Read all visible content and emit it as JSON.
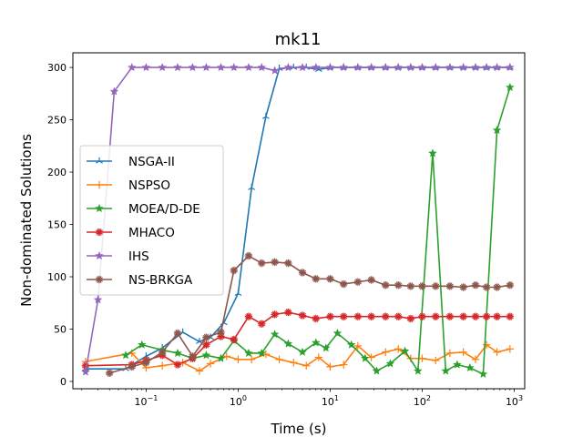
{
  "chart_data": {
    "type": "line",
    "title": "mk11",
    "xlabel": "Time (s)",
    "ylabel": "Non-dominated Solutions",
    "xscale": "log",
    "xlim": [
      0.016,
      1300
    ],
    "ylim": [
      -7,
      314
    ],
    "x_ticks": [
      0.1,
      1,
      10,
      100,
      1000
    ],
    "x_tick_labels": [
      [
        "10",
        "−1"
      ],
      [
        "10",
        "0"
      ],
      [
        "10",
        "1"
      ],
      [
        "10",
        "2"
      ],
      [
        "10",
        "3"
      ]
    ],
    "y_ticks": [
      0,
      50,
      100,
      150,
      200,
      250,
      300
    ],
    "y_tick_labels": [
      "0",
      "50",
      "100",
      "150",
      "200",
      "250",
      "300"
    ],
    "grid": false,
    "legend_position": "center-left",
    "series": [
      {
        "name": "NSGA-II",
        "color": "#1f77b4",
        "marker": "tri",
        "x": [
          0.022,
          0.06,
          0.1,
          0.15,
          0.25,
          0.38,
          0.5,
          0.7,
          1.0,
          1.4,
          2.0,
          2.8,
          4.0,
          5.5,
          7.5,
          10,
          14,
          20,
          28,
          40,
          55,
          75,
          100,
          140,
          200,
          280,
          380,
          500,
          650,
          900
        ],
        "y": [
          12,
          12,
          24,
          32,
          47,
          38,
          42,
          56,
          84,
          185,
          253,
          299,
          300,
          300,
          298,
          300,
          300,
          300,
          300,
          300,
          300,
          300,
          300,
          300,
          300,
          300,
          300,
          300,
          300,
          300
        ]
      },
      {
        "name": "NSPSO",
        "color": "#ff7f0e",
        "marker": "plus",
        "x": [
          0.022,
          0.07,
          0.1,
          0.15,
          0.25,
          0.38,
          0.5,
          0.75,
          1.0,
          1.4,
          2.0,
          2.8,
          4.0,
          5.5,
          7.5,
          10,
          14,
          20,
          28,
          40,
          55,
          75,
          100,
          140,
          200,
          280,
          380,
          500,
          650,
          900
        ],
        "y": [
          19,
          27,
          13,
          15,
          18,
          10,
          17,
          24,
          21,
          21,
          26,
          21,
          18,
          15,
          23,
          14,
          16,
          34,
          23,
          28,
          31,
          22,
          22,
          20,
          27,
          28,
          21,
          35,
          28,
          31
        ]
      },
      {
        "name": "MOEA/D-DE",
        "color": "#2ca02c",
        "marker": "star",
        "x": [
          0.06,
          0.09,
          0.15,
          0.22,
          0.32,
          0.45,
          0.65,
          0.9,
          1.3,
          1.8,
          2.5,
          3.5,
          5.0,
          7.0,
          9.0,
          12,
          17,
          24,
          32,
          45,
          65,
          90,
          130,
          180,
          240,
          330,
          460,
          650,
          900
        ],
        "y": [
          25,
          35,
          30,
          27,
          22,
          25,
          22,
          39,
          27,
          27,
          45,
          36,
          28,
          37,
          32,
          46,
          35,
          22,
          10,
          17,
          29,
          10,
          218,
          10,
          16,
          13,
          7,
          240,
          281
        ]
      },
      {
        "name": "MHACO",
        "color": "#d62728",
        "marker": "asterisk",
        "x": [
          0.022,
          0.07,
          0.1,
          0.15,
          0.22,
          0.32,
          0.45,
          0.65,
          0.9,
          1.3,
          1.8,
          2.5,
          3.5,
          5.0,
          7.0,
          10,
          14,
          20,
          28,
          40,
          55,
          75,
          100,
          140,
          200,
          280,
          380,
          500,
          650,
          900
        ],
        "y": [
          15,
          16,
          20,
          25,
          16,
          22,
          35,
          43,
          40,
          62,
          55,
          64,
          66,
          63,
          60,
          62,
          62,
          62,
          62,
          62,
          62,
          60,
          62,
          62,
          62,
          62,
          62,
          62,
          62,
          62
        ]
      },
      {
        "name": "IHS",
        "color": "#9467bd",
        "marker": "star",
        "x": [
          0.022,
          0.03,
          0.045,
          0.07,
          0.1,
          0.15,
          0.22,
          0.32,
          0.45,
          0.65,
          0.9,
          1.3,
          1.8,
          2.5,
          3.5,
          5.0,
          7.0,
          10,
          14,
          20,
          28,
          40,
          55,
          75,
          100,
          140,
          200,
          280,
          380,
          500,
          650,
          900
        ],
        "y": [
          9,
          78,
          277,
          300,
          300,
          300,
          300,
          300,
          300,
          300,
          300,
          300,
          300,
          297,
          300,
          300,
          300,
          300,
          300,
          300,
          300,
          300,
          300,
          300,
          300,
          300,
          300,
          300,
          300,
          300,
          300,
          300
        ]
      },
      {
        "name": "NS-BRKGA",
        "color": "#8c564b",
        "marker": "asterisk",
        "x": [
          0.04,
          0.07,
          0.1,
          0.15,
          0.22,
          0.32,
          0.45,
          0.65,
          0.9,
          1.3,
          1.8,
          2.5,
          3.5,
          5.0,
          7.0,
          10,
          14,
          20,
          28,
          40,
          55,
          75,
          100,
          140,
          200,
          280,
          380,
          500,
          650,
          900
        ],
        "y": [
          8,
          14,
          18,
          28,
          46,
          24,
          42,
          47,
          106,
          120,
          113,
          114,
          113,
          104,
          98,
          98,
          93,
          95,
          97,
          92,
          92,
          91,
          91,
          91,
          91,
          90,
          92,
          90,
          90,
          92
        ]
      }
    ]
  }
}
